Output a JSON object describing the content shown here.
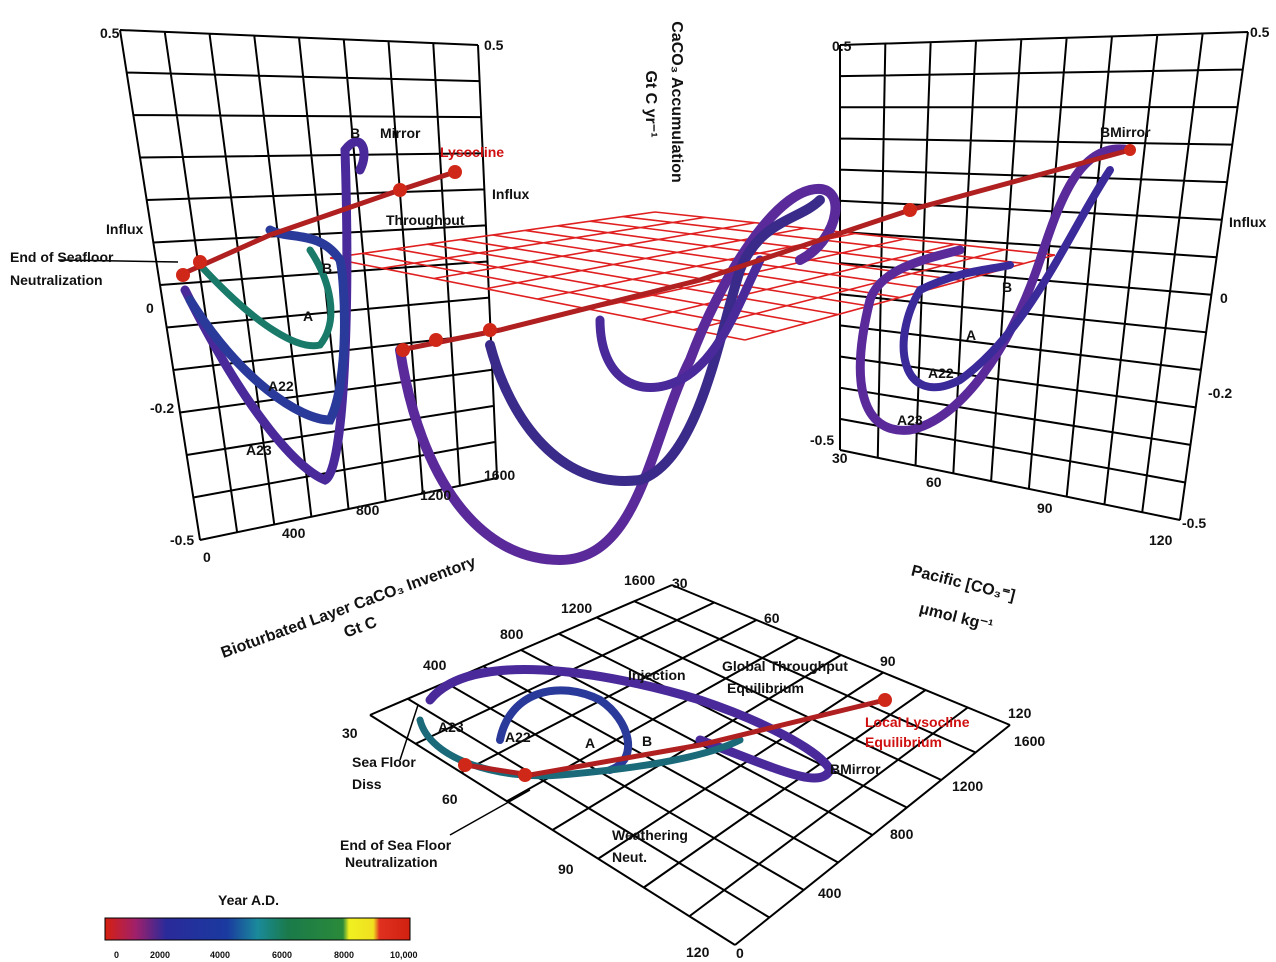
{
  "axis_title": {
    "line1": "CaCO₃ Accumulation",
    "line2": "Gt C yr⁻¹"
  },
  "left_panel": {
    "y_ticks_left": [
      "0.5",
      "0",
      "-0.2",
      "-0.5"
    ],
    "y_tick_right": "0.5",
    "x_ticks": [
      "0",
      "400",
      "800",
      "1200",
      "1600"
    ],
    "labels": {
      "b_top": "B",
      "mirror": "Mirror",
      "lysocline": "Lysocline",
      "influx_right": "Influx",
      "influx_left": "Influx",
      "throughput": "Throughput",
      "end_line1": "End of Seafloor",
      "end_line2": "Neutralization",
      "b": "B",
      "a": "A",
      "a22": "A22",
      "a23": "A23"
    }
  },
  "right_panel": {
    "y_ticks_left": [
      "0.5",
      "-0.5"
    ],
    "y_ticks_right": [
      "0.5",
      "0",
      "-0.2",
      "-0.5"
    ],
    "x_ticks": [
      "30",
      "60",
      "90",
      "120"
    ],
    "labels": {
      "bmirror": "BMirror",
      "influx": "Influx",
      "b": "B",
      "a": "A",
      "a22": "A22",
      "a23": "A23"
    }
  },
  "inventory_axis": {
    "line1": "Bioturbated Layer CaCO₃ Inventory",
    "line2": "Gt C"
  },
  "co3_axis": {
    "line1": "Pacific [CO₃⁼]",
    "line2": "μmol kg⁻¹"
  },
  "floor_panel": {
    "inventory_ticks_left": [
      "1600",
      "1200",
      "800",
      "400"
    ],
    "co3_ticks_top": [
      "30",
      "60",
      "90",
      "120"
    ],
    "co3_ticks_left": [
      "30",
      "60",
      "90",
      "120"
    ],
    "inventory_ticks_right": [
      "1600",
      "1200",
      "800",
      "400",
      "0"
    ],
    "labels": {
      "injection": "Injection",
      "global_line1": "Global Throughput",
      "global_line2": "Equilibrium",
      "local_line1": "Local Lysocline",
      "local_line2": "Equilibrium",
      "a23": "A23",
      "a22": "A22",
      "a": "A",
      "b": "B",
      "bmirror": "BMirror",
      "diss_line1": "Sea Floor",
      "diss_line2": "Diss",
      "end_line1": "End of Sea Floor",
      "end_line2": "Neutralization",
      "weathering_line1": "Weathering",
      "weathering_line2": "Neut."
    }
  },
  "legend": {
    "title": "Year A.D.",
    "ticks": [
      "0",
      "2000",
      "4000",
      "6000",
      "8000",
      "10,000"
    ]
  }
}
